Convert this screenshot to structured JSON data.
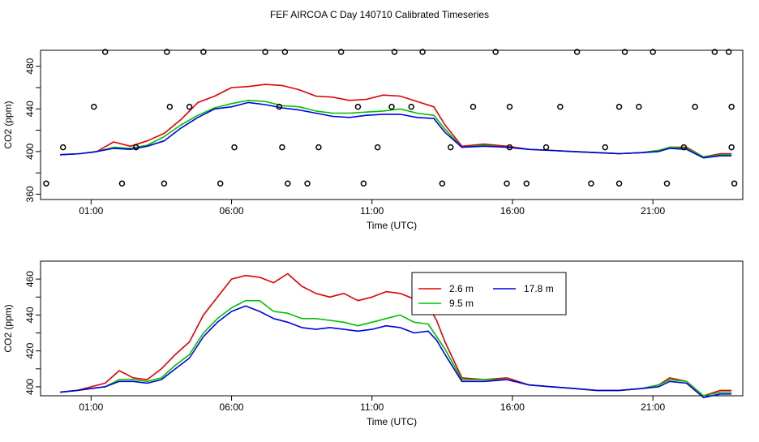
{
  "title": "FEF AIRCOA C  Day 140710  Calibrated Timeseries",
  "colors": {
    "s1": "#e00000",
    "s2": "#00c000",
    "s3": "#0000e0",
    "axis": "#000000"
  },
  "chart_data": [
    {
      "type": "line",
      "title": "",
      "xlabel": "Time (UTC)",
      "ylabel": "CO2 (ppm)",
      "xlim": [
        -0.8,
        24.2
      ],
      "ylim": [
        355,
        495
      ],
      "xticks": [
        1,
        6,
        11,
        16,
        21
      ],
      "xtick_labels": [
        "01:00",
        "06:00",
        "11:00",
        "16:00",
        "21:00"
      ],
      "yticks": [
        360,
        380,
        400,
        420,
        440,
        460,
        480
      ],
      "ytick_labels": [
        "360",
        "",
        "400",
        "",
        "440",
        "",
        "480"
      ],
      "grid": false,
      "legend": "none",
      "x": [
        -0.1,
        0.6,
        1.2,
        1.8,
        2.4,
        3.0,
        3.6,
        4.2,
        4.8,
        5.4,
        6.0,
        6.6,
        7.2,
        7.8,
        8.4,
        9.0,
        9.6,
        10.2,
        10.8,
        11.4,
        12.0,
        12.6,
        13.2,
        13.6,
        14.2,
        15.0,
        15.8,
        16.6,
        17.4,
        18.2,
        19.0,
        19.8,
        20.6,
        21.2,
        21.6,
        22.2,
        22.8,
        23.4,
        23.8
      ],
      "series": [
        {
          "values": [
            397,
            398,
            400,
            409,
            405,
            410,
            417,
            430,
            446,
            452,
            460,
            461,
            463,
            462,
            458,
            452,
            451,
            448,
            449,
            453,
            452,
            447,
            442,
            425,
            405,
            407,
            405,
            402,
            401,
            400,
            399,
            398,
            399,
            401,
            404,
            404,
            395,
            398,
            398
          ]
        },
        {
          "values": [
            397,
            398,
            400,
            404,
            403,
            406,
            414,
            425,
            434,
            441,
            445,
            448,
            447,
            443,
            442,
            438,
            436,
            436,
            437,
            438,
            440,
            436,
            434,
            421,
            404,
            406,
            404,
            402,
            401,
            400,
            399,
            398,
            399,
            401,
            404,
            403,
            395,
            397,
            397
          ]
        },
        {
          "values": [
            397,
            398,
            400,
            403,
            402,
            405,
            410,
            422,
            432,
            440,
            442,
            446,
            444,
            441,
            439,
            436,
            433,
            432,
            434,
            435,
            435,
            432,
            431,
            418,
            404,
            405,
            404,
            402,
            401,
            400,
            399,
            398,
            399,
            400,
            403,
            402,
            394,
            396,
            396
          ]
        }
      ],
      "cal_points": {
        "x": [
          -0.6,
          1.1,
          0.0,
          1.5,
          2.1,
          2.6,
          3.6,
          3.8,
          3.7,
          4.5,
          5.0,
          5.6,
          6.1,
          7.2,
          7.7,
          7.9,
          7.8,
          8.7,
          8.0,
          9.1,
          9.9,
          10.5,
          10.7,
          11.2,
          11.7,
          11.8,
          12.4,
          12.8,
          13.5,
          13.8,
          14.6,
          15.4,
          15.9,
          15.9,
          15.8,
          16.5,
          17.2,
          17.7,
          18.3,
          18.8,
          19.3,
          19.8,
          19.8,
          20.0,
          20.5,
          21.0,
          21.5,
          22.1,
          22.5,
          23.2,
          23.7,
          23.8,
          23.8,
          23.9
        ],
        "y": [
          370,
          442,
          404,
          500,
          370,
          404,
          370,
          442,
          500,
          442,
          500,
          370,
          404,
          500,
          442,
          500,
          404,
          370,
          370,
          404,
          500,
          442,
          370,
          404,
          442,
          500,
          442,
          500,
          370,
          404,
          442,
          500,
          442,
          404,
          370,
          370,
          404,
          442,
          500,
          370,
          404,
          370,
          442,
          500,
          442,
          500,
          370,
          404,
          442,
          500,
          500,
          442,
          404,
          370
        ]
      }
    },
    {
      "type": "line",
      "title": "",
      "xlabel": "Time (UTC)",
      "ylabel": "CO2 (ppm)",
      "xlim": [
        -0.8,
        24.2
      ],
      "ylim": [
        395,
        470
      ],
      "xticks": [
        1,
        6,
        11,
        16,
        21
      ],
      "xtick_labels": [
        "01:00",
        "06:00",
        "11:00",
        "16:00",
        "21:00"
      ],
      "yticks": [
        400,
        410,
        420,
        430,
        440,
        450,
        460
      ],
      "ytick_labels": [
        "400",
        "",
        "420",
        "",
        "440",
        "",
        "460"
      ],
      "grid": false,
      "legend": "inside-top-center",
      "x": [
        -0.1,
        0.5,
        1.0,
        1.5,
        2.0,
        2.5,
        3.0,
        3.5,
        4.0,
        4.5,
        5.0,
        5.5,
        6.0,
        6.5,
        7.0,
        7.5,
        8.0,
        8.5,
        9.0,
        9.5,
        10.0,
        10.5,
        11.0,
        11.5,
        12.0,
        12.5,
        13.0,
        13.3,
        13.6,
        14.2,
        15.0,
        15.8,
        16.6,
        17.4,
        18.2,
        19.0,
        19.8,
        20.6,
        21.2,
        21.6,
        22.2,
        22.8,
        23.4,
        23.8
      ],
      "series": [
        {
          "name": "2.6 m",
          "values": [
            397,
            398,
            400,
            402,
            409,
            405,
            404,
            410,
            418,
            425,
            440,
            450,
            460,
            462,
            461,
            458,
            463,
            456,
            452,
            450,
            452,
            448,
            450,
            453,
            452,
            449,
            445,
            437,
            425,
            405,
            404,
            405,
            401,
            400,
            399,
            398,
            398,
            399,
            401,
            405,
            403,
            395,
            398,
            398
          ]
        },
        {
          "name": "9.5 m",
          "values": [
            397,
            398,
            399,
            400,
            404,
            404,
            403,
            405,
            412,
            418,
            430,
            438,
            444,
            448,
            448,
            442,
            441,
            438,
            438,
            437,
            436,
            434,
            436,
            438,
            440,
            436,
            435,
            428,
            421,
            404,
            404,
            404,
            401,
            400,
            399,
            398,
            398,
            399,
            401,
            404,
            403,
            395,
            397,
            397
          ]
        },
        {
          "name": "17.8 m",
          "values": [
            397,
            398,
            399,
            400,
            403,
            403,
            402,
            404,
            410,
            416,
            428,
            436,
            442,
            445,
            442,
            438,
            436,
            433,
            432,
            433,
            432,
            431,
            432,
            434,
            433,
            430,
            431,
            426,
            418,
            403,
            403,
            404,
            401,
            400,
            399,
            398,
            398,
            399,
            400,
            403,
            402,
            394,
            396,
            396
          ]
        }
      ]
    }
  ]
}
